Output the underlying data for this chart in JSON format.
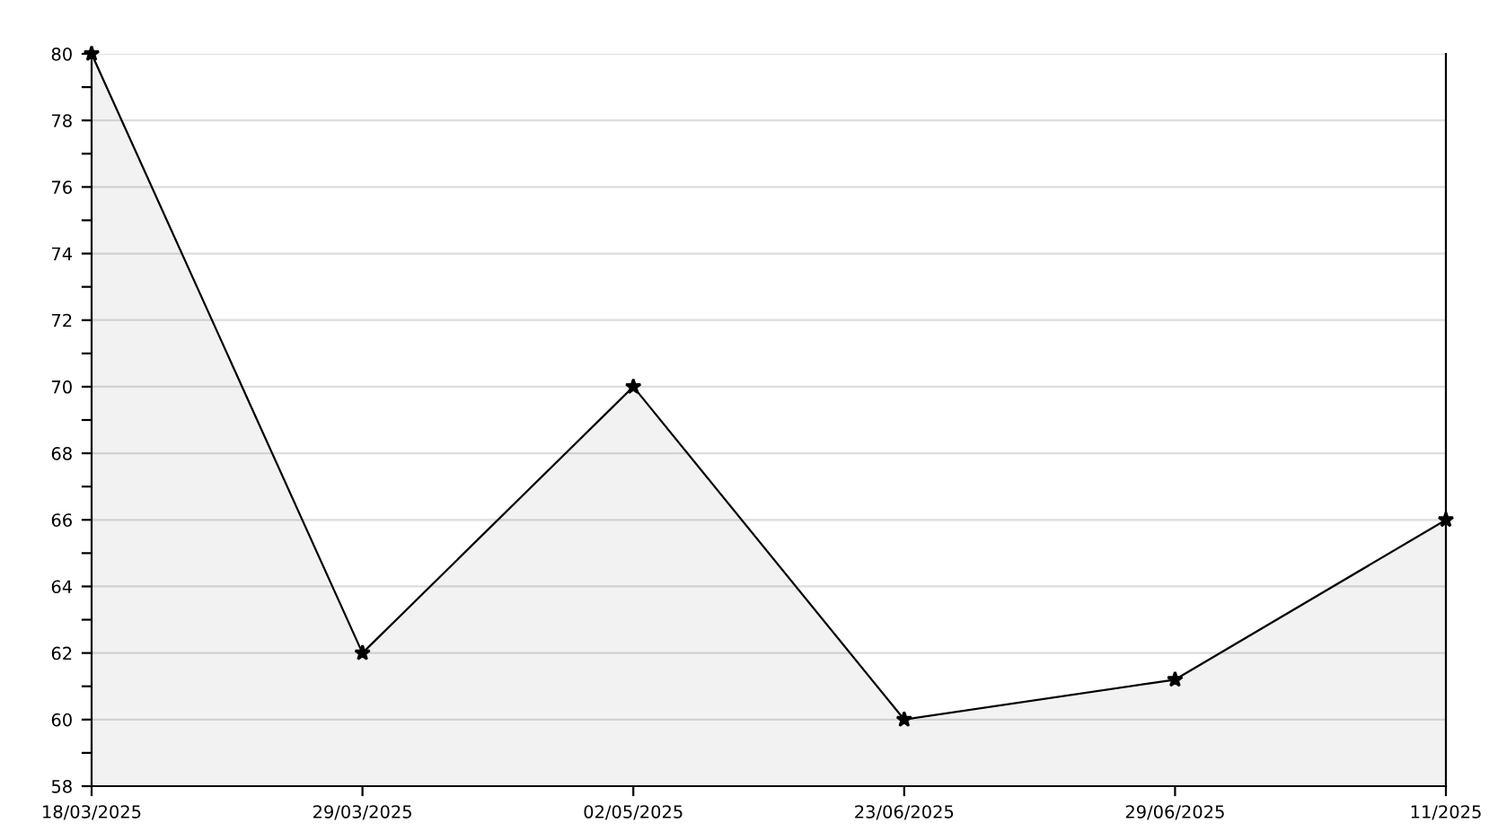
{
  "chart_data": {
    "type": "area",
    "categories": [
      "18/03/2025",
      "29/03/2025",
      "02/05/2025",
      "23/06/2025",
      "29/06/2025",
      "11/2025"
    ],
    "series": [
      {
        "color": "#000000",
        "values": [
          80,
          62,
          70,
          60,
          61.2,
          66
        ]
      }
    ],
    "ylim": [
      58,
      80
    ],
    "yticks": [
      58,
      {
        "value": 59,
        "label": null
      },
      60,
      {
        "value": 61,
        "label": null
      },
      62,
      {
        "value": 63,
        "label": null
      },
      64,
      {
        "value": 65,
        "label": null
      },
      66,
      {
        "value": 67,
        "label": null
      },
      68,
      {
        "value": 69,
        "label": null
      },
      70,
      {
        "value": 71,
        "label": null
      },
      72,
      {
        "value": 73,
        "label": null
      },
      74,
      {
        "value": 75,
        "label": null
      },
      76,
      {
        "value": 77,
        "label": null
      },
      78,
      {
        "value": 79,
        "label": null
      },
      80
    ],
    "grid": "y",
    "marker": "star",
    "line_style": "solid",
    "legend": false
  }
}
